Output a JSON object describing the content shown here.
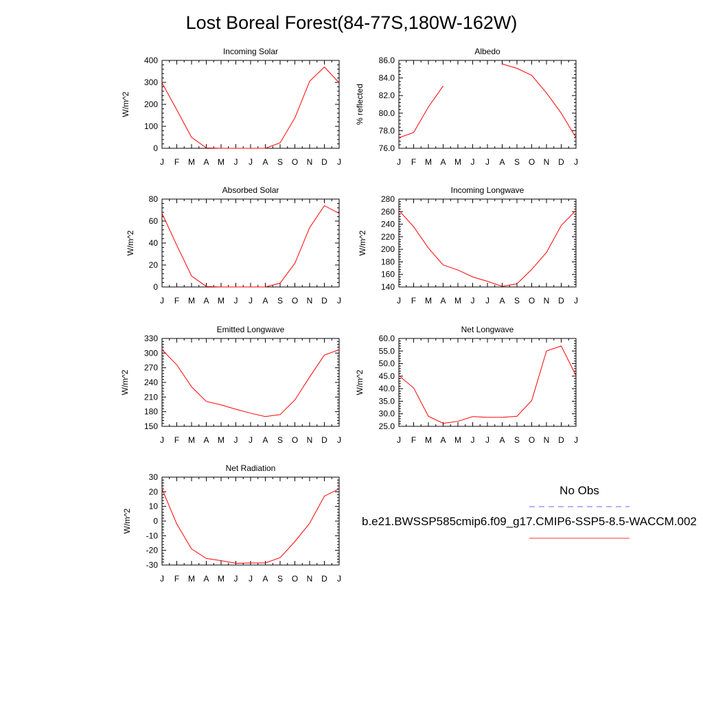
{
  "title": "Lost Boreal Forest(84-77S,180W-162W)",
  "months": [
    "J",
    "F",
    "M",
    "A",
    "M",
    "J",
    "J",
    "A",
    "S",
    "O",
    "N",
    "D",
    "J"
  ],
  "colors": {
    "model": "#ff0000",
    "obs": "#0000ff",
    "axis": "#000000"
  },
  "legend": {
    "obs_label": "No Obs",
    "model_label": "b.e21.BWSSP585cmip6.f09_g17.CMIP6-SSP5-8.5-WACCM.002"
  },
  "chart_data": [
    {
      "type": "line",
      "title": "Incoming Solar",
      "ylabel": "W/m^2",
      "ylim": [
        0,
        400
      ],
      "yticks": [
        0,
        100,
        200,
        300,
        400
      ],
      "ytick_labels": [
        "0",
        "100",
        "200",
        "300",
        "400"
      ],
      "series": [
        {
          "values": [
            298,
            175,
            50,
            2,
            0,
            0,
            0,
            0,
            25,
            138,
            305,
            370,
            298
          ]
        }
      ]
    },
    {
      "type": "line",
      "title": "Albedo",
      "ylabel": "% reflected",
      "ylim": [
        76.0,
        86.0
      ],
      "yticks": [
        76,
        78,
        80,
        82,
        84,
        86
      ],
      "ytick_labels": [
        "76.0",
        "78.0",
        "80.0",
        "82.0",
        "84.0",
        "86.0"
      ],
      "series": [
        {
          "values": [
            77.2,
            77.8,
            80.7,
            83.1,
            null,
            null,
            null,
            85.6,
            85.1,
            84.3,
            82.3,
            80.0,
            77.2
          ]
        }
      ]
    },
    {
      "type": "line",
      "title": "Absorbed Solar",
      "ylabel": "W/m^2",
      "ylim": [
        0,
        80
      ],
      "yticks": [
        0,
        20,
        40,
        60,
        80
      ],
      "ytick_labels": [
        "0",
        "20",
        "40",
        "60",
        "80"
      ],
      "series": [
        {
          "values": [
            67,
            38,
            10,
            0.5,
            0,
            0,
            0,
            0,
            3.5,
            21.5,
            54,
            74,
            67
          ]
        }
      ]
    },
    {
      "type": "line",
      "title": "Incoming Longwave",
      "ylabel": "W/m^2",
      "ylim": [
        140,
        280
      ],
      "yticks": [
        140,
        160,
        180,
        200,
        220,
        240,
        260,
        280
      ],
      "ytick_labels": [
        "140",
        "160",
        "180",
        "200",
        "220",
        "240",
        "260",
        "280"
      ],
      "series": [
        {
          "values": [
            262,
            236,
            202,
            175,
            167,
            156,
            149,
            141,
            145,
            168,
            195,
            238,
            262
          ]
        }
      ]
    },
    {
      "type": "line",
      "title": "Emitted Longwave",
      "ylabel": "W/m^2",
      "ylim": [
        150,
        330
      ],
      "yticks": [
        150,
        180,
        210,
        240,
        270,
        300,
        330
      ],
      "ytick_labels": [
        "150",
        "180",
        "210",
        "240",
        "270",
        "300",
        "330"
      ],
      "series": [
        {
          "values": [
            307,
            276,
            231,
            201,
            194,
            185,
            177,
            170,
            174,
            204,
            251,
            296,
            307
          ]
        }
      ]
    },
    {
      "type": "line",
      "title": "Net Longwave",
      "ylabel": "W/m^2",
      "ylim": [
        25.0,
        60.0
      ],
      "yticks": [
        25,
        30,
        35,
        40,
        45,
        50,
        55,
        60
      ],
      "ytick_labels": [
        "25.0",
        "30.0",
        "35.0",
        "40.0",
        "45.0",
        "50.0",
        "55.0",
        "60.0"
      ],
      "series": [
        {
          "values": [
            45.2,
            40.3,
            29.0,
            26.2,
            27.0,
            28.9,
            28.6,
            28.6,
            29.0,
            35.3,
            55.0,
            57.0,
            45.2
          ]
        }
      ]
    },
    {
      "type": "line",
      "title": "Net Radiation",
      "ylabel": "W/m^2",
      "ylim": [
        -30,
        30
      ],
      "yticks": [
        -30,
        -20,
        -10,
        0,
        10,
        20,
        30
      ],
      "ytick_labels": [
        "-30",
        "-20",
        "-10",
        "0",
        "10",
        "20",
        "30"
      ],
      "series": [
        {
          "values": [
            22,
            -2,
            -19,
            -25.5,
            -27,
            -28.8,
            -28.6,
            -28.6,
            -25,
            -14,
            -1.5,
            17,
            22
          ]
        }
      ]
    }
  ]
}
